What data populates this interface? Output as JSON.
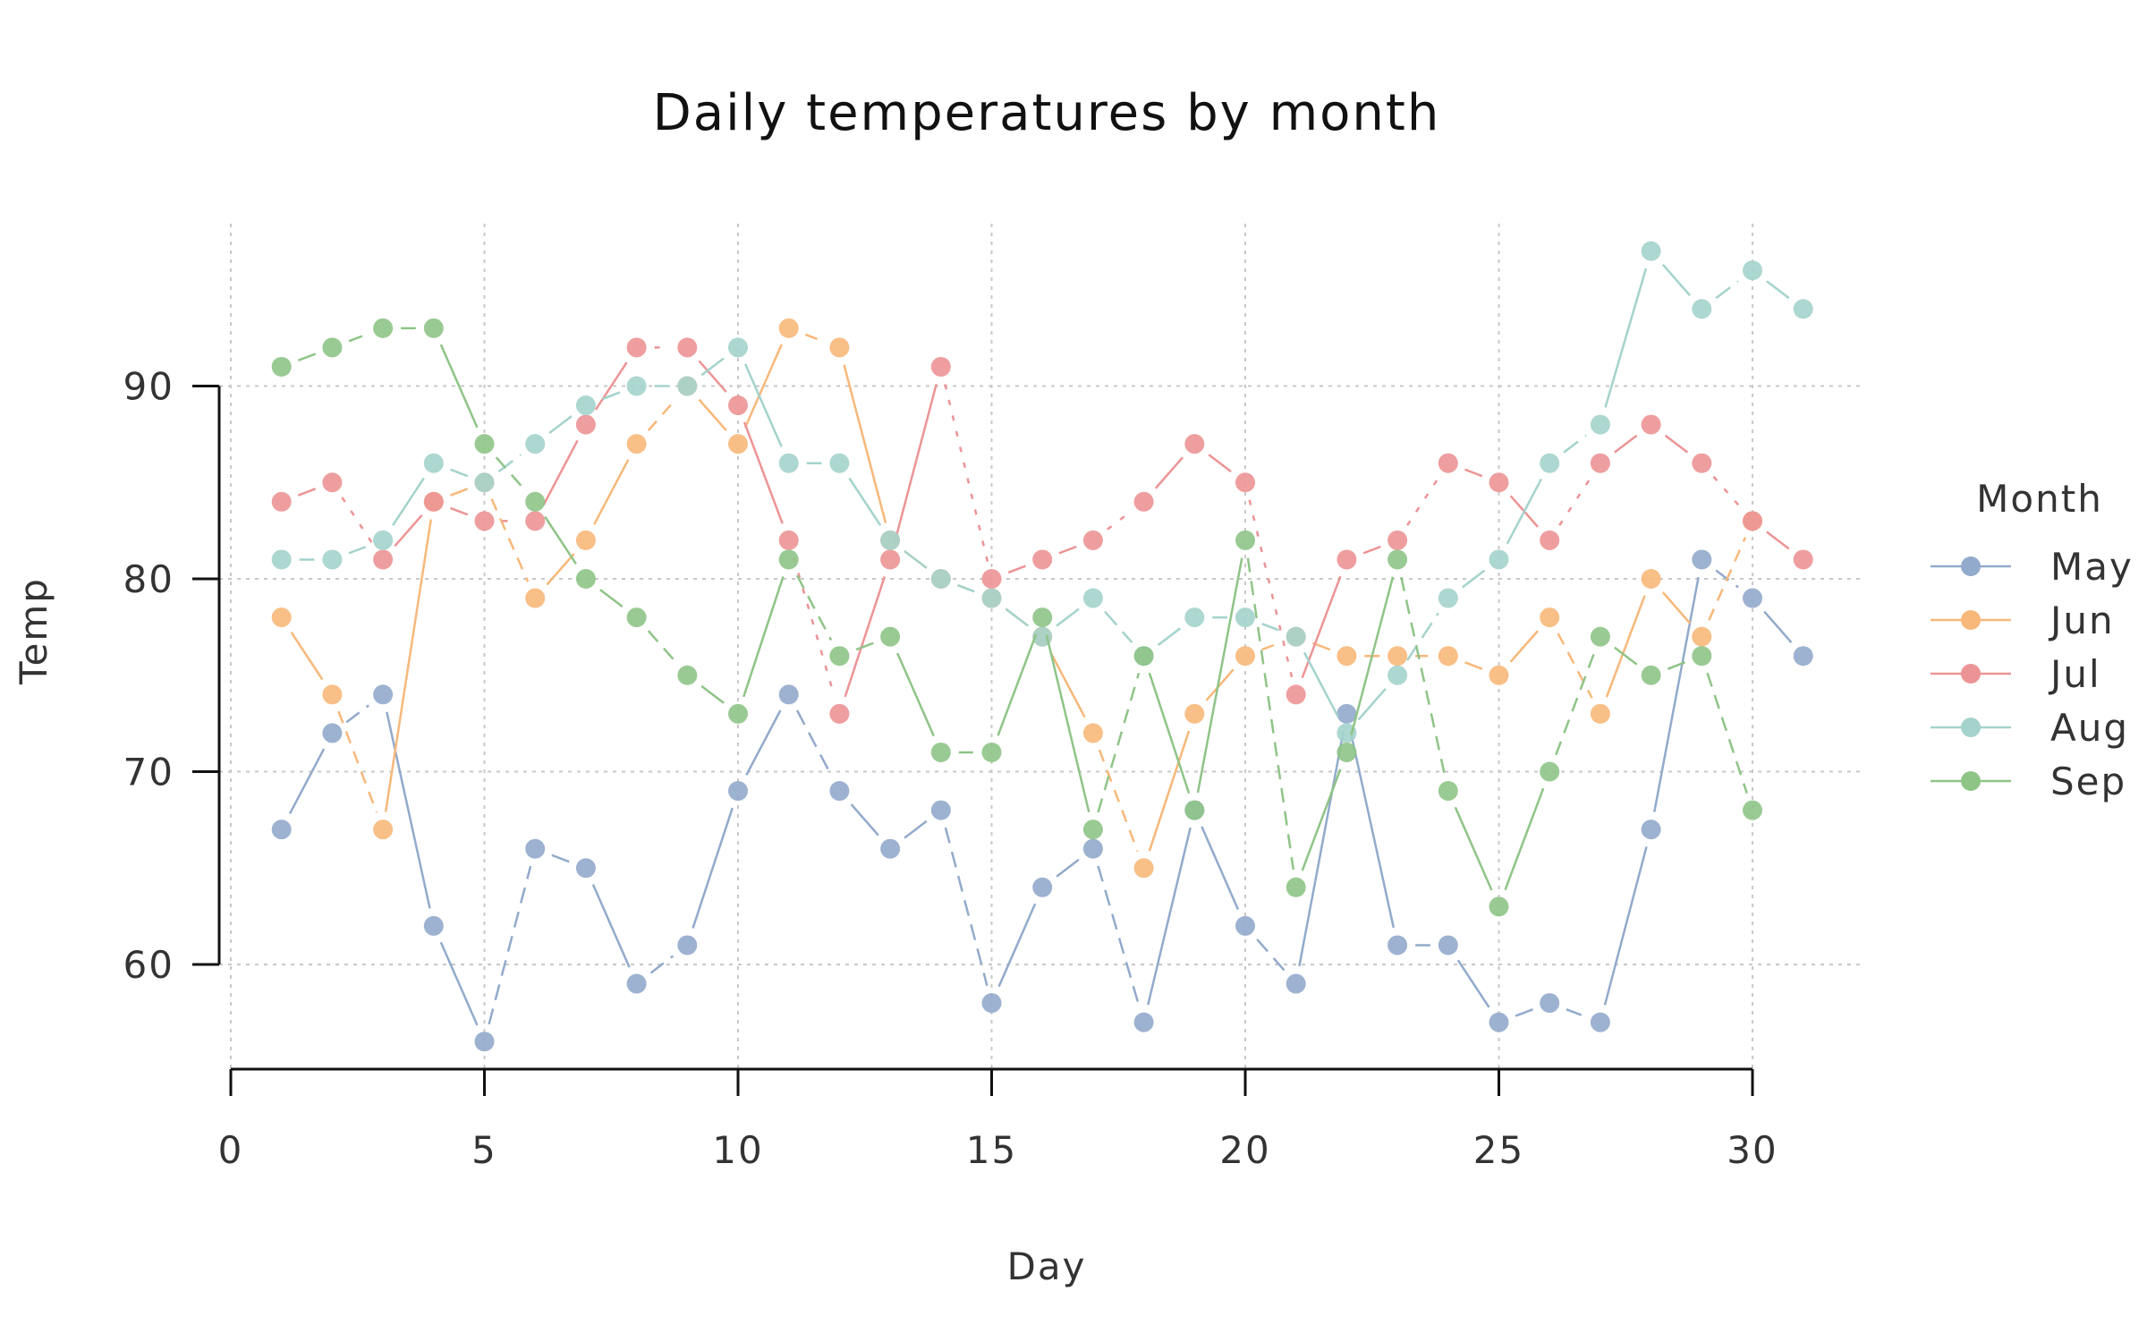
{
  "chart_data": {
    "type": "line",
    "title": "Daily temperatures by month",
    "xlabel": "Day",
    "ylabel": "Temp",
    "xlim": [
      0,
      31
    ],
    "ylim": [
      54.5,
      98
    ],
    "xticks": [
      0,
      5,
      10,
      15,
      20,
      25,
      30
    ],
    "yticks": [
      60,
      70,
      80,
      90
    ],
    "grid": true,
    "legend": {
      "title": "Month",
      "placement": "right"
    },
    "x": [
      1,
      2,
      3,
      4,
      5,
      6,
      7,
      8,
      9,
      10,
      11,
      12,
      13,
      14,
      15,
      16,
      17,
      18,
      19,
      20,
      21,
      22,
      23,
      24,
      25,
      26,
      27,
      28,
      29,
      30,
      31
    ],
    "series": [
      {
        "name": "May",
        "color": "#92aacb",
        "dash": "",
        "values": [
          67,
          72,
          74,
          62,
          56,
          66,
          65,
          59,
          61,
          69,
          74,
          69,
          66,
          68,
          58,
          64,
          66,
          57,
          68,
          62,
          59,
          73,
          61,
          61,
          57,
          58,
          57,
          67,
          81,
          79,
          76
        ]
      },
      {
        "name": "Jun",
        "color": "#f7b87a",
        "dash": "",
        "values": [
          78,
          74,
          67,
          84,
          85,
          79,
          82,
          87,
          90,
          87,
          93,
          92,
          82,
          80,
          79,
          77,
          72,
          65,
          73,
          76,
          77,
          76,
          76,
          76,
          75,
          78,
          73,
          80,
          77,
          83,
          null
        ]
      },
      {
        "name": "Jul",
        "color": "#ec9495",
        "dash": "",
        "values": [
          84,
          85,
          81,
          84,
          83,
          83,
          88,
          92,
          92,
          89,
          82,
          73,
          81,
          91,
          80,
          81,
          82,
          84,
          87,
          85,
          74,
          81,
          82,
          86,
          85,
          82,
          86,
          88,
          86,
          83,
          81
        ]
      },
      {
        "name": "Aug",
        "color": "#a4d3cc",
        "dash": "",
        "values": [
          81,
          81,
          82,
          86,
          85,
          87,
          89,
          90,
          90,
          92,
          86,
          86,
          82,
          80,
          79,
          77,
          79,
          76,
          78,
          78,
          77,
          72,
          75,
          79,
          81,
          86,
          88,
          97,
          94,
          96,
          94
        ]
      },
      {
        "name": "Sep",
        "color": "#8fc487",
        "dash": "",
        "values": [
          91,
          92,
          93,
          93,
          87,
          84,
          80,
          78,
          75,
          73,
          81,
          76,
          77,
          71,
          71,
          78,
          67,
          76,
          68,
          82,
          64,
          71,
          81,
          69,
          63,
          70,
          77,
          75,
          76,
          68,
          null
        ]
      }
    ]
  }
}
